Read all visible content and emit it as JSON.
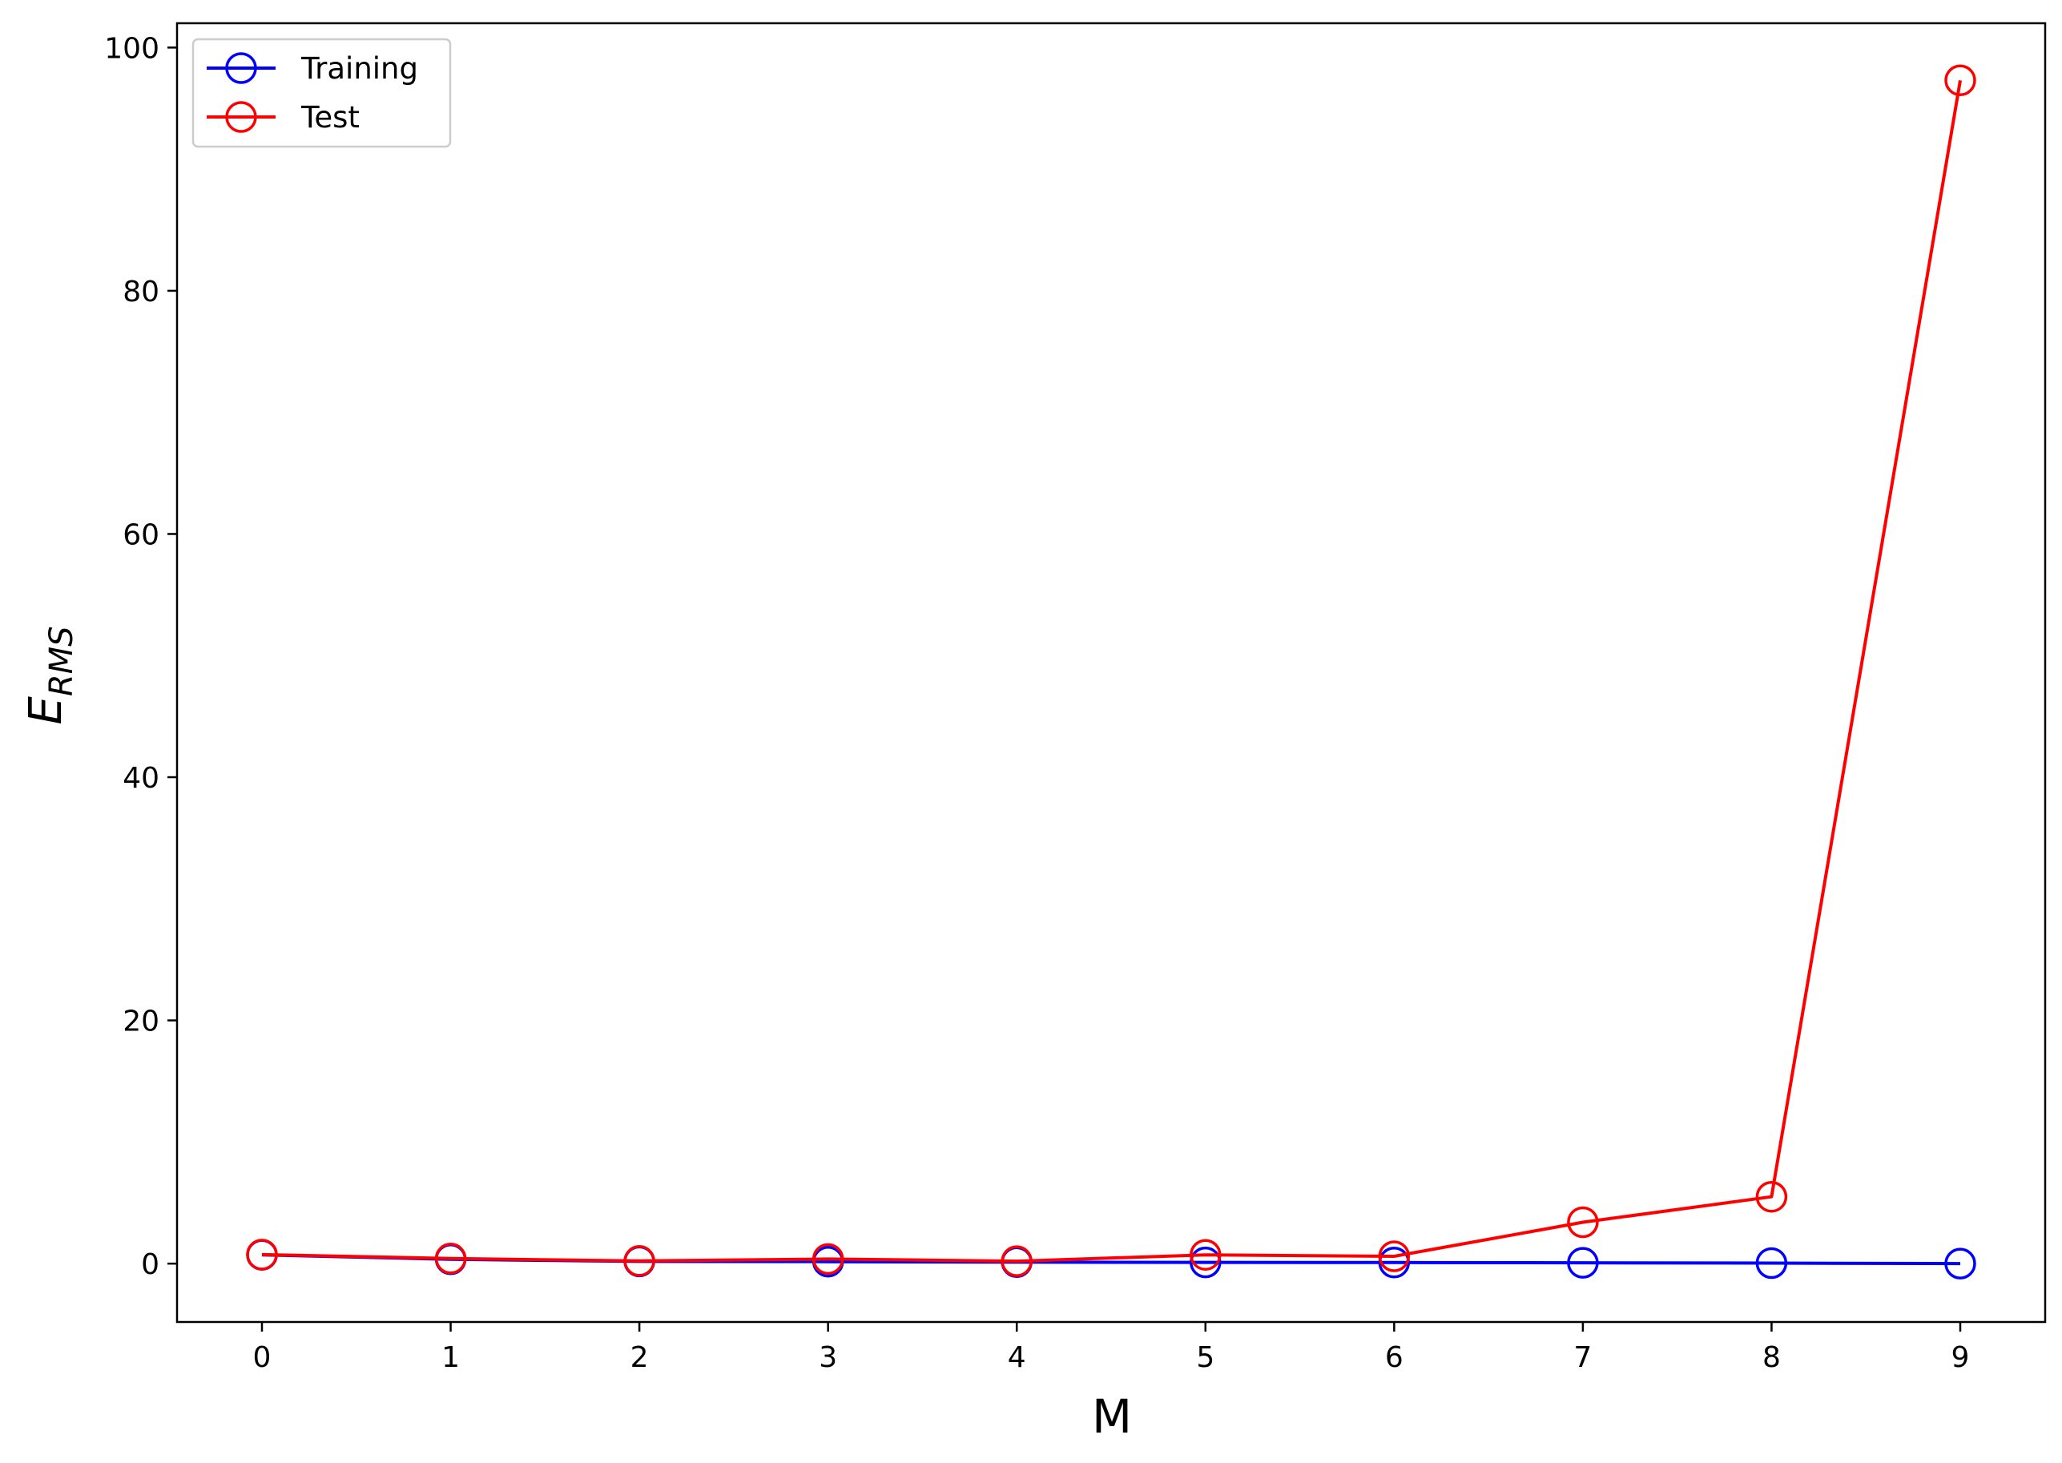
{
  "chart_data": {
    "type": "line",
    "title": "",
    "xlabel": "M",
    "ylabel": {
      "main": "E",
      "subscript": "RMS"
    },
    "x": [
      0,
      1,
      2,
      3,
      4,
      5,
      6,
      7,
      8,
      9
    ],
    "xticks": [
      "0",
      "1",
      "2",
      "3",
      "4",
      "5",
      "6",
      "7",
      "8",
      "9"
    ],
    "yticks": [
      "0",
      "20",
      "40",
      "60",
      "80",
      "100"
    ],
    "xlim": [
      -0.45,
      9.45
    ],
    "ylim": [
      -4.8,
      102
    ],
    "grid": false,
    "legend_position": "upper left",
    "marker": "open circle",
    "series": [
      {
        "name": "Training",
        "color": "#0000ff",
        "values": [
          0.72,
          0.35,
          0.18,
          0.16,
          0.12,
          0.1,
          0.09,
          0.07,
          0.04,
          0.0
        ]
      },
      {
        "name": "Test",
        "color": "#ff0000",
        "values": [
          0.74,
          0.42,
          0.22,
          0.38,
          0.2,
          0.72,
          0.6,
          3.4,
          5.5,
          97.3
        ]
      }
    ]
  }
}
